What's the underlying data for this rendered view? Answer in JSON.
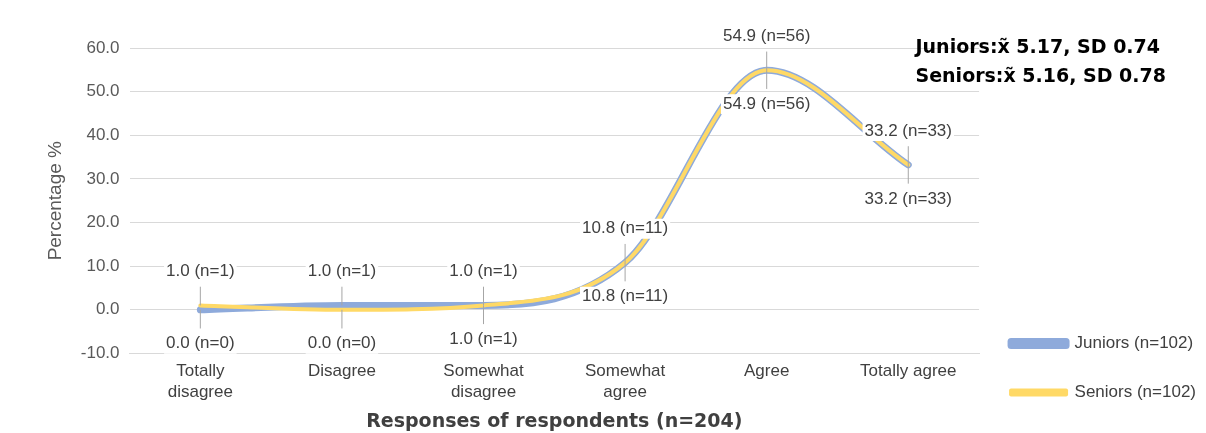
{
  "chart_data": {
    "type": "line",
    "xlabel": "Responses of respondents (n=204)",
    "ylabel": "Percentage %",
    "categories": [
      "Totally disagree",
      "Disagree",
      "Somewhat disagree",
      "Somewhat agree",
      "Agree",
      "Totally agree"
    ],
    "series": [
      {
        "name": "Juniors (n=102)",
        "color": "#8eaadb",
        "values": [
          0.0,
          1.0,
          1.0,
          10.8,
          54.9,
          33.2
        ],
        "value_labels": [
          "0.0 (n=0)",
          "1.0 (n=1)",
          "1.0 (n=1)",
          "10.8 (n=11)",
          "54.9 (n=56)",
          "33.2 (n=33)"
        ]
      },
      {
        "name": "Seniors (n=102)",
        "color": "#ffd966",
        "values": [
          1.0,
          0.0,
          1.0,
          10.8,
          54.9,
          33.2
        ],
        "value_labels": [
          "1.0 (n=1)",
          "0.0 (n=0)",
          "1.0 (n=1)",
          "10.8 (n=11)",
          "54.9 (n=56)",
          "33.2 (n=33)"
        ]
      }
    ],
    "ylim": [
      -10,
      60
    ],
    "yticks": [
      {
        "value": -10,
        "label": "-10.0"
      },
      {
        "value": 0,
        "label": "0.0"
      },
      {
        "value": 10,
        "label": "10.0"
      },
      {
        "value": 20,
        "label": "20.0"
      },
      {
        "value": 30,
        "label": "30.0"
      },
      {
        "value": 40,
        "label": "40.0"
      },
      {
        "value": 50,
        "label": "50.0"
      },
      {
        "value": 60,
        "label": "60.0"
      }
    ],
    "grid": "y",
    "legend": "bottom right",
    "marker": "none",
    "line_style": "solid",
    "annotations": [
      "Juniors:x̃ 5.17, SD 0.74",
      "Seniors:x̃ 5.16, SD 0.78"
    ]
  }
}
